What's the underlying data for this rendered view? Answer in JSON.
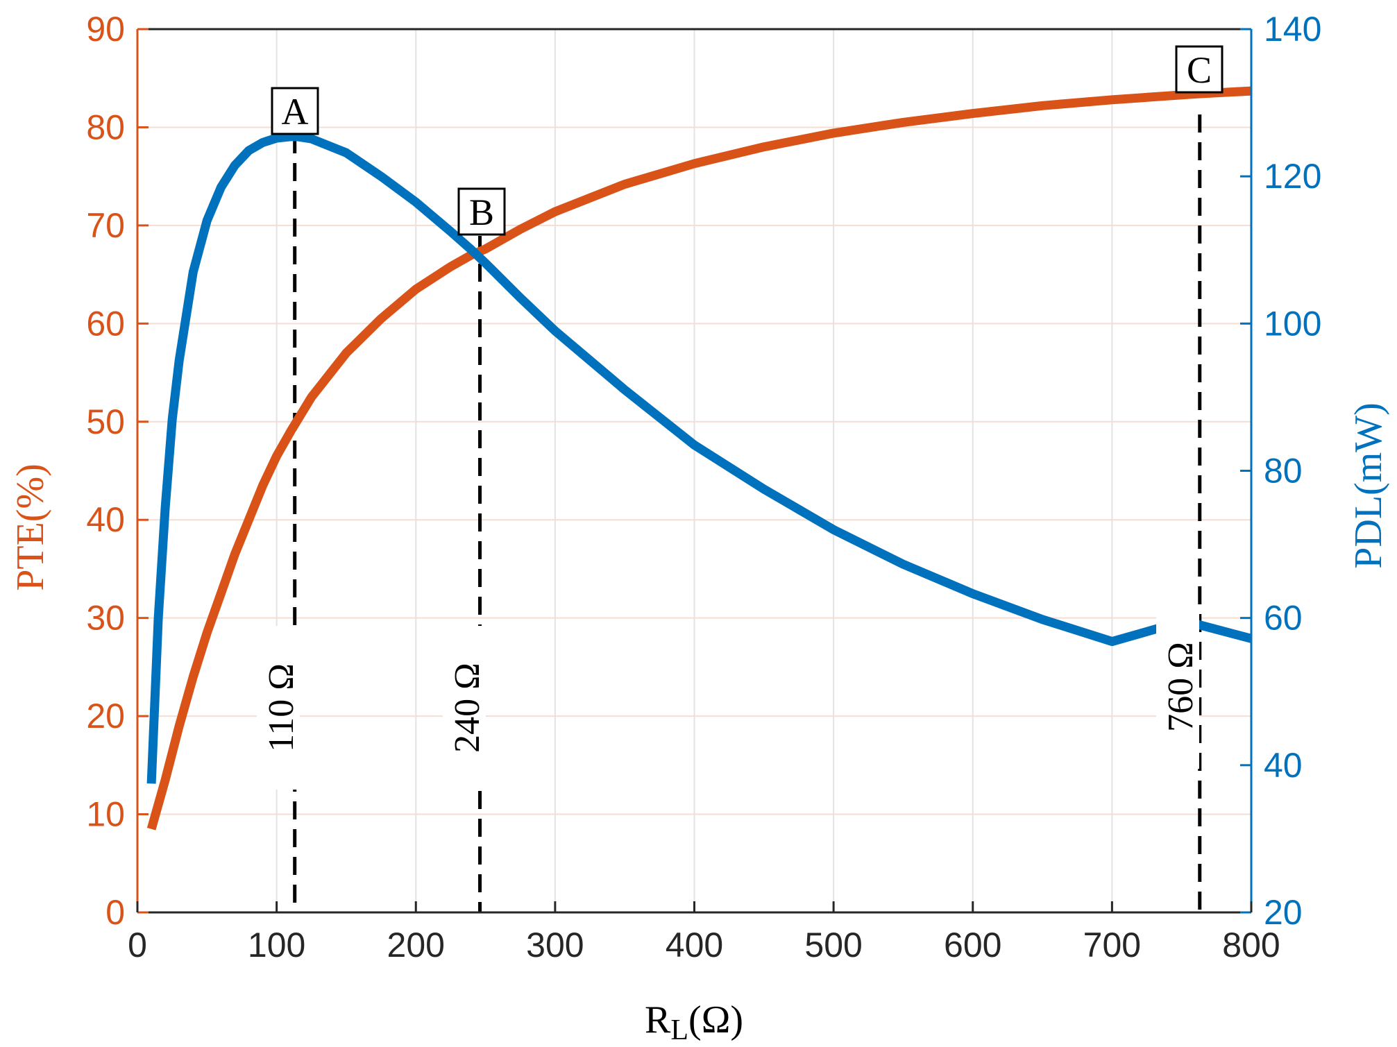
{
  "chart_data": {
    "type": "line",
    "xlabel": "R",
    "xlabel_sub": "L",
    "xlabel_suffix": "(Ω)",
    "xlim": [
      0,
      800
    ],
    "x_ticks": [
      0,
      100,
      200,
      300,
      400,
      500,
      600,
      700,
      800
    ],
    "grid": true,
    "y_left": {
      "label": "PTE(%)",
      "lim": [
        0,
        90
      ],
      "ticks": [
        0,
        10,
        20,
        30,
        40,
        50,
        60,
        70,
        80,
        90
      ],
      "color": "#D95319"
    },
    "y_right": {
      "label": "PDL(mW)",
      "lim": [
        20,
        140
      ],
      "ticks": [
        20,
        40,
        60,
        80,
        100,
        120,
        140
      ],
      "color": "#0072BD"
    },
    "series": [
      {
        "axis": "left",
        "color": "#D95319",
        "x": [
          10,
          20,
          30,
          40,
          50,
          60,
          70,
          80,
          90,
          100,
          110,
          125,
          150,
          175,
          200,
          225,
          240,
          250,
          275,
          300,
          350,
          400,
          450,
          500,
          550,
          600,
          650,
          700,
          750,
          760,
          800
        ],
        "y": [
          8.5,
          13.5,
          19,
          24,
          28.5,
          32.5,
          36.5,
          40,
          43.5,
          46.5,
          49,
          52.5,
          57,
          60.5,
          63.5,
          65.8,
          67,
          67.6,
          69.6,
          71.4,
          74.2,
          76.3,
          78,
          79.4,
          80.5,
          81.4,
          82.2,
          82.8,
          83.3,
          83.4,
          83.7
        ]
      },
      {
        "axis": "right",
        "color": "#0072BD",
        "x": [
          10,
          15,
          20,
          25,
          30,
          40,
          50,
          60,
          70,
          80,
          90,
          100,
          110,
          115,
          125,
          150,
          175,
          200,
          225,
          240,
          250,
          275,
          300,
          350,
          400,
          450,
          500,
          550,
          600,
          650,
          700,
          750,
          760,
          800
        ],
        "y": [
          37.5,
          60,
          75,
          87,
          95,
          107,
          114,
          118.5,
          121.5,
          123.5,
          124.6,
          125.2,
          125.4,
          125.4,
          125.1,
          123.2,
          120,
          116.5,
          112.5,
          110,
          108.2,
          103.5,
          99,
          91,
          83.5,
          77.5,
          72,
          67.3,
          63.3,
          59.8,
          56.8,
          59.5,
          59.2,
          57.2
        ]
      }
    ],
    "markers": [
      {
        "label": "A",
        "x": 113
      },
      {
        "label": "B",
        "x": 246
      },
      {
        "label": "C",
        "x": 763
      }
    ],
    "resistance_labels": [
      "110 Ω",
      "240 Ω",
      "760 Ω"
    ]
  }
}
